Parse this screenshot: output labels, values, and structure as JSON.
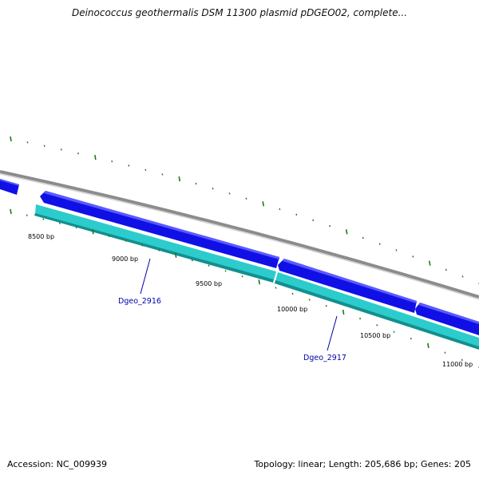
{
  "title": "Deinococcus geothermalis DSM 11300 plasmid pDGEO02, complete...",
  "accession": "Accession: NC_009939",
  "summary": "Topology: linear; Length: 205,686 bp; Genes: 205",
  "colors": {
    "backbone": "#8c8c8c",
    "forward_gene": "#1010e6",
    "forward_gene_highlight": "#5a5aff",
    "reverse_gene": "#2ccccc",
    "reverse_gene_shadow": "#138f8f",
    "tick": "#1a7a1a",
    "gene_label": "#0000a8"
  },
  "tick_labels": [
    {
      "id": "8500",
      "text": "8500 bp"
    },
    {
      "id": "9000",
      "text": "9000 bp"
    },
    {
      "id": "9500",
      "text": "9500 bp"
    },
    {
      "id": "10000",
      "text": "10000 bp"
    },
    {
      "id": "10500",
      "text": "10500 bp"
    },
    {
      "id": "11000",
      "text": "11000 bp"
    }
  ],
  "genes": [
    {
      "id": "Dgeo_2916",
      "label": "Dgeo_2916"
    },
    {
      "id": "Dgeo_2917",
      "label": "Dgeo_2917"
    }
  ]
}
